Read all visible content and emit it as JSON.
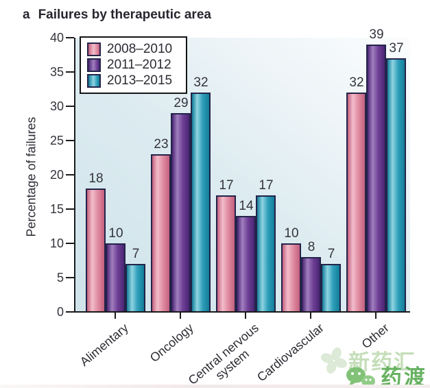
{
  "panel": {
    "label": "a",
    "title": "Failures by therapeutic area"
  },
  "chart_data": {
    "type": "bar",
    "title": "Failures by therapeutic area",
    "xlabel": "",
    "ylabel": "Percentage of failures",
    "ylim": [
      0,
      40
    ],
    "ytick_step": 5,
    "grid": false,
    "legend_position": "top-left",
    "bar_value_labels": true,
    "categories": [
      "Alimentary",
      "Oncology",
      "Central nervous system",
      "Cardiovascular",
      "Other"
    ],
    "category_label_lines": [
      [
        "Alimentary"
      ],
      [
        "Oncology"
      ],
      [
        "Central nervous",
        "system"
      ],
      [
        "Cardiovascular"
      ],
      [
        "Other"
      ]
    ],
    "series": [
      {
        "name": "2008–2010",
        "values": [
          18,
          23,
          17,
          10,
          32
        ]
      },
      {
        "name": "2011–2012",
        "values": [
          10,
          29,
          14,
          8,
          39
        ]
      },
      {
        "name": "2013–2015",
        "values": [
          7,
          32,
          17,
          7,
          37
        ]
      }
    ]
  },
  "colors": {
    "series": [
      {
        "edge": "#c4607e",
        "highlight": "#f2bdca",
        "mid": "#e08da2"
      },
      {
        "edge": "#4a2574",
        "highlight": "#a17fbe",
        "mid": "#6f4096"
      },
      {
        "edge": "#137d99",
        "highlight": "#8fd4e2",
        "mid": "#2f9fba"
      }
    ],
    "bar_outline": "#232349",
    "axis": "#1a1a1a",
    "text": "#2b2b33",
    "plot_bg_start": "#cfe3eb",
    "plot_bg_end": "#fbfdfe",
    "legend_border": "#141414"
  },
  "watermark": {
    "brand_top": "新药汇",
    "brand_bottom": "药渡",
    "logo_icon": "pinwheel-icon",
    "chat_icon": "wechat-bubbles-icon"
  }
}
